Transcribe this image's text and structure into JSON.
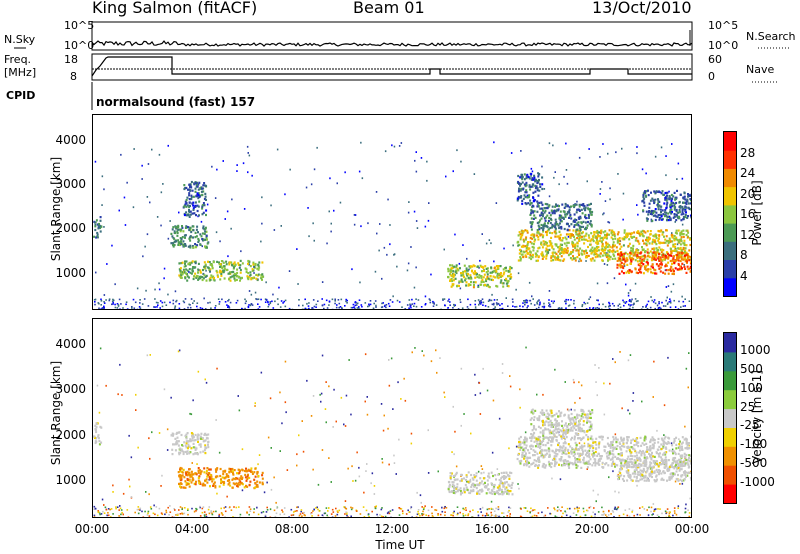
{
  "header": {
    "station": "King Salmon (fitACF)",
    "beam": "Beam 01",
    "date": "13/Oct/2010"
  },
  "top_panels": {
    "nsky_label": "N.Sky",
    "nsearch_label": "N.Search",
    "nsky_ticks": [
      "10^5",
      "10^0"
    ],
    "freq_label_1": "Freq.",
    "freq_label_2": "[MHz]",
    "freq_ticks": [
      "18",
      "8"
    ],
    "nave_label": "Nave",
    "nave_ticks": [
      "60",
      "0"
    ],
    "cpid_label": "CPID",
    "cpid_text": "normalsound (fast) 157"
  },
  "colors": {
    "power_scale": [
      "#0000ff",
      "#2a3fa8",
      "#3b6e7e",
      "#4c9a55",
      "#8cc63f",
      "#f0c400",
      "#f08a00",
      "#ff3000",
      "#ff0000"
    ],
    "velocity_scale": [
      "#2a2aa0",
      "#2a7a78",
      "#3a9a3a",
      "#8ccc3c",
      "#c8c8c8",
      "#f0d000",
      "#f09000",
      "#f05000",
      "#ff0000"
    ]
  },
  "chart_data": [
    {
      "type": "heatmap",
      "title": "Power",
      "ylabel": "Slant Range [km]",
      "xlabel": "",
      "x_ticks": [
        "00:00",
        "04:00",
        "08:00",
        "12:00",
        "16:00",
        "20:00",
        "00:00"
      ],
      "y_ticks": [
        "1000",
        "2000",
        "3000",
        "4000"
      ],
      "ylim": [
        180,
        4600
      ],
      "colorbar_label": "Power [dB]",
      "colorbar_ticks": [
        "4",
        "8",
        "12",
        "16",
        "20",
        "24",
        "28"
      ],
      "clim": [
        0,
        30
      ],
      "echo_regions": [
        {
          "t": [
            0.0,
            0.3
          ],
          "r": [
            1800,
            2300
          ],
          "level": 8
        },
        {
          "t": [
            3.1,
            4.6
          ],
          "r": [
            1600,
            2100
          ],
          "level": 10
        },
        {
          "t": [
            3.6,
            4.5
          ],
          "r": [
            2300,
            3100
          ],
          "level": 6
        },
        {
          "t": [
            3.4,
            6.8
          ],
          "r": [
            850,
            1300
          ],
          "level": 14
        },
        {
          "t": [
            14.2,
            16.8
          ],
          "r": [
            700,
            1200
          ],
          "level": 16
        },
        {
          "t": [
            17.0,
            24.0
          ],
          "r": [
            1300,
            2000
          ],
          "level": 18
        },
        {
          "t": [
            21.0,
            24.0
          ],
          "r": [
            1000,
            1500
          ],
          "level": 24
        },
        {
          "t": [
            17.5,
            20.0
          ],
          "r": [
            2000,
            2600
          ],
          "level": 8
        },
        {
          "t": [
            17.0,
            18.0
          ],
          "r": [
            2600,
            3300
          ],
          "level": 6
        },
        {
          "t": [
            22.0,
            24.0
          ],
          "r": [
            2200,
            2900
          ],
          "level": 6
        }
      ]
    },
    {
      "type": "heatmap",
      "title": "Velocity",
      "ylabel": "Slant Range [km]",
      "xlabel": "Time UT",
      "x_ticks": [
        "00:00",
        "04:00",
        "08:00",
        "12:00",
        "16:00",
        "20:00",
        "00:00"
      ],
      "y_ticks": [
        "1000",
        "2000",
        "3000",
        "4000"
      ],
      "ylim": [
        180,
        4600
      ],
      "colorbar_label": "Velocity [m s-1]",
      "colorbar_ticks": [
        "1000",
        "500",
        "100",
        "25",
        "-25",
        "-100",
        "-500",
        "-1000"
      ],
      "clim": [
        -1200,
        1200
      ],
      "echo_regions": [
        {
          "t": [
            0.0,
            0.3
          ],
          "r": [
            1800,
            2300
          ],
          "velocity": 0
        },
        {
          "t": [
            3.1,
            4.6
          ],
          "r": [
            1600,
            2100
          ],
          "velocity": 0
        },
        {
          "t": [
            3.4,
            6.8
          ],
          "r": [
            850,
            1300
          ],
          "velocity": -150
        },
        {
          "t": [
            14.2,
            16.8
          ],
          "r": [
            700,
            1200
          ],
          "velocity": 0
        },
        {
          "t": [
            17.0,
            24.0
          ],
          "r": [
            1300,
            2000
          ],
          "velocity": 0
        },
        {
          "t": [
            21.0,
            24.0
          ],
          "r": [
            1000,
            1500
          ],
          "velocity": 0
        },
        {
          "t": [
            17.5,
            20.0
          ],
          "r": [
            2000,
            2600
          ],
          "velocity": 0
        }
      ]
    }
  ]
}
